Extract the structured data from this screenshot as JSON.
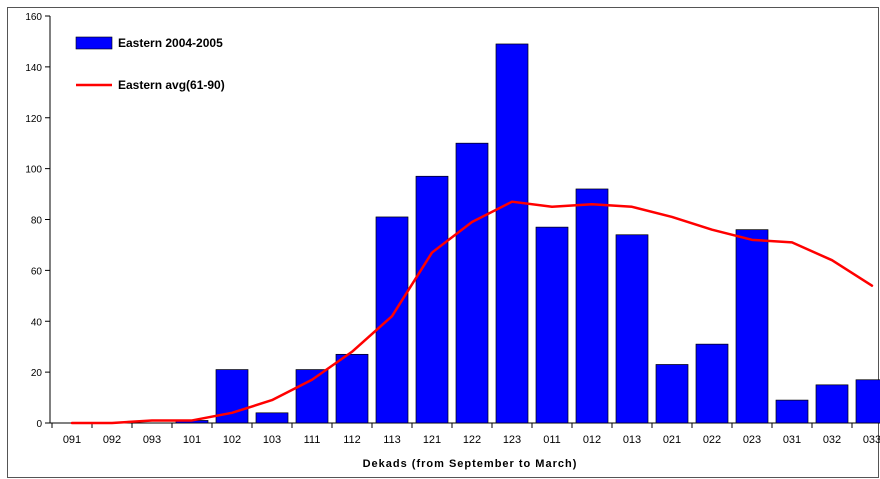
{
  "chart_data": {
    "type": "bar",
    "xlabel": "Dekads (from September to March)",
    "ylabel": "",
    "title": "",
    "ylim": [
      0,
      160
    ],
    "yticks": [
      0,
      20,
      40,
      60,
      80,
      100,
      120,
      140,
      160
    ],
    "grid": false,
    "legend_position": "top-left",
    "categories": [
      "091",
      "092",
      "093",
      "101",
      "102",
      "103",
      "111",
      "112",
      "113",
      "121",
      "122",
      "123",
      "011",
      "012",
      "013",
      "021",
      "022",
      "023",
      "031",
      "032",
      "033"
    ],
    "series": [
      {
        "name": "Eastern 2004-2005",
        "type": "bar",
        "color": "#0000ff",
        "values": [
          0,
          0,
          0,
          1,
          21,
          4,
          21,
          27,
          81,
          97,
          110,
          149,
          77,
          92,
          74,
          23,
          31,
          76,
          9,
          15,
          17
        ]
      },
      {
        "name": "Eastern avg(61-90)",
        "type": "line",
        "color": "#ff0000",
        "values": [
          0,
          0,
          1,
          1,
          4,
          9,
          17,
          28,
          42,
          67,
          79,
          87,
          85,
          86,
          85,
          81,
          76,
          72,
          71,
          64,
          54
        ]
      }
    ]
  }
}
